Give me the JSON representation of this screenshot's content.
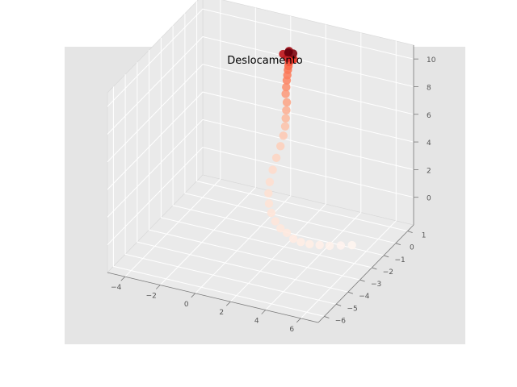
{
  "chart_data": {
    "type": "scatter",
    "projection": "3d",
    "title": "Deslocamento",
    "xlabel": "",
    "ylabel": "",
    "zlabel": "",
    "grid": true,
    "colormap": "Reds",
    "colormap_stops": [
      "#fff5f0",
      "#fee0d2",
      "#fcbba1",
      "#fc9272",
      "#fb6a4a",
      "#ef3b2c",
      "#cb181d",
      "#a50f15",
      "#67000d"
    ],
    "background": "#e5e5e5",
    "pane_color": "#eaeaea",
    "grid_color": "#ffffff",
    "xlim": [
      -5,
      7
    ],
    "ylim": [
      -6.5,
      1.5
    ],
    "zlim": [
      -2,
      11
    ],
    "x_ticks": [
      -4,
      -2,
      0,
      2,
      4,
      6
    ],
    "x_tick_labels": [
      "−4",
      "−2",
      "0",
      "2",
      "4",
      "6"
    ],
    "y_ticks": [
      -6,
      -5,
      -4,
      -3,
      -2,
      -1,
      0,
      1
    ],
    "y_tick_labels": [
      "−6",
      "−5",
      "−4",
      "−3",
      "−2",
      "−1",
      "0",
      "1"
    ],
    "z_ticks": [
      0,
      2,
      4,
      6,
      8,
      10
    ],
    "z_tick_labels": [
      "0",
      "2",
      "4",
      "6",
      "8",
      "10"
    ],
    "points": [
      {
        "x": 6.0,
        "y": -2.2,
        "z": -0.5,
        "c": 0.0
      },
      {
        "x": 5.5,
        "y": -2.4,
        "z": -0.5,
        "c": 0.01
      },
      {
        "x": 5.0,
        "y": -2.6,
        "z": -0.5,
        "c": 0.02
      },
      {
        "x": 4.5,
        "y": -2.7,
        "z": -0.5,
        "c": 0.03
      },
      {
        "x": 4.0,
        "y": -2.8,
        "z": -0.5,
        "c": 0.04
      },
      {
        "x": 3.5,
        "y": -2.8,
        "z": -0.5,
        "c": 0.05
      },
      {
        "x": 3.0,
        "y": -2.7,
        "z": -0.5,
        "c": 0.06
      },
      {
        "x": 2.5,
        "y": -2.5,
        "z": -0.4,
        "c": 0.07
      },
      {
        "x": 2.0,
        "y": -2.3,
        "z": -0.4,
        "c": 0.08
      },
      {
        "x": 1.5,
        "y": -2.0,
        "z": -0.3,
        "c": 0.09
      },
      {
        "x": 1.0,
        "y": -1.6,
        "z": -0.2,
        "c": 0.1
      },
      {
        "x": 0.6,
        "y": -1.2,
        "z": 0.0,
        "c": 0.11
      },
      {
        "x": 0.3,
        "y": -0.8,
        "z": 0.3,
        "c": 0.12
      },
      {
        "x": 0.1,
        "y": -0.4,
        "z": 0.7,
        "c": 0.13
      },
      {
        "x": 0.0,
        "y": 0.0,
        "z": 1.2,
        "c": 0.14
      },
      {
        "x": 0.0,
        "y": 0.3,
        "z": 1.8,
        "c": 0.16
      },
      {
        "x": 0.1,
        "y": 0.5,
        "z": 2.5,
        "c": 0.18
      },
      {
        "x": 0.2,
        "y": 0.6,
        "z": 3.2,
        "c": 0.2
      },
      {
        "x": 0.3,
        "y": 0.6,
        "z": 3.9,
        "c": 0.22
      },
      {
        "x": 0.4,
        "y": 0.5,
        "z": 4.6,
        "c": 0.25
      },
      {
        "x": 0.5,
        "y": 0.4,
        "z": 5.3,
        "c": 0.28
      },
      {
        "x": 0.6,
        "y": 0.3,
        "z": 6.0,
        "c": 0.31
      },
      {
        "x": 0.6,
        "y": 0.2,
        "z": 6.7,
        "c": 0.34
      },
      {
        "x": 0.7,
        "y": 0.1,
        "z": 7.3,
        "c": 0.37
      },
      {
        "x": 0.8,
        "y": 0.0,
        "z": 7.9,
        "c": 0.4
      },
      {
        "x": 0.9,
        "y": -0.1,
        "z": 8.4,
        "c": 0.43
      },
      {
        "x": 1.0,
        "y": -0.2,
        "z": 8.9,
        "c": 0.46
      },
      {
        "x": 1.1,
        "y": -0.3,
        "z": 9.3,
        "c": 0.5
      },
      {
        "x": 1.2,
        "y": -0.4,
        "z": 9.7,
        "c": 0.55
      },
      {
        "x": 1.4,
        "y": -0.5,
        "z": 10.0,
        "c": 0.6
      },
      {
        "x": 1.6,
        "y": -0.6,
        "z": 10.2,
        "c": 0.65
      },
      {
        "x": 1.3,
        "y": -0.7,
        "z": 10.3,
        "c": 0.72
      },
      {
        "x": 1.0,
        "y": -0.6,
        "z": 10.4,
        "c": 0.8
      },
      {
        "x": 1.2,
        "y": -0.4,
        "z": 10.5,
        "c": 0.88
      },
      {
        "x": 1.5,
        "y": -0.5,
        "z": 10.5,
        "c": 0.95
      },
      {
        "x": 1.3,
        "y": -0.6,
        "z": 10.6,
        "c": 1.0
      }
    ]
  }
}
